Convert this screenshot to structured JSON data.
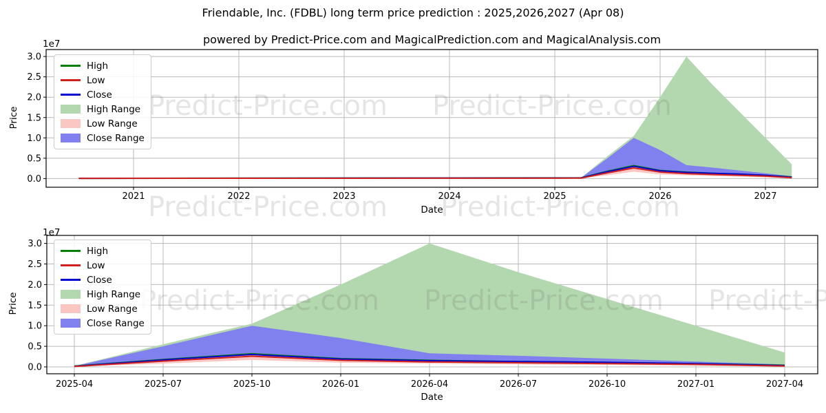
{
  "figure": {
    "title": "Friendable, Inc. (FDBL) long term price prediction : 2025,2026,2027 (Apr 08)",
    "subtitle": "powered by Predict-Price.com and MagicalPrediction.com and MagicalAnalysis.com",
    "watermark": "Predict-Price.com"
  },
  "colors": {
    "high_line": "#067f06",
    "low_line": "#cf1f1f",
    "close_line": "#0404cf",
    "high_range": "#b3d7af",
    "low_range": "#f9c6c2",
    "close_range": "#8080ef",
    "grid": "#b9b9b9",
    "frame": "#000000",
    "text": "#000000"
  },
  "legend": {
    "items": [
      {
        "label": "High",
        "swatch": "line",
        "color": "#067f06"
      },
      {
        "label": "Low",
        "swatch": "line",
        "color": "#cf1f1f"
      },
      {
        "label": "Close",
        "swatch": "line",
        "color": "#0404cf"
      },
      {
        "label": "High Range",
        "swatch": "patch",
        "color": "#b3d7af"
      },
      {
        "label": "Low Range",
        "swatch": "patch",
        "color": "#f9c6c2"
      },
      {
        "label": "Close Range",
        "swatch": "patch",
        "color": "#8080ef"
      }
    ]
  },
  "chart_data": [
    {
      "type": "area",
      "title": "long term price prediction 2020-2027 overview",
      "xlabel": "Date",
      "ylabel": "Price",
      "y_offset_label": "1e7",
      "ylim": [
        0,
        30000000
      ],
      "grid": true,
      "legend_position": "upper left",
      "x_ticks": [
        {
          "label": "2021",
          "year": 2021
        },
        {
          "label": "2022",
          "year": 2022
        },
        {
          "label": "2023",
          "year": 2023
        },
        {
          "label": "2024",
          "year": 2024
        },
        {
          "label": "2025",
          "year": 2025
        },
        {
          "label": "2026",
          "year": 2026
        },
        {
          "label": "2027",
          "year": 2027
        }
      ],
      "y_ticks": [
        {
          "label": "0.0",
          "value": 0
        },
        {
          "label": "0.5",
          "value": 5000000
        },
        {
          "label": "1.0",
          "value": 10000000
        },
        {
          "label": "1.5",
          "value": 15000000
        },
        {
          "label": "2.0",
          "value": 20000000
        },
        {
          "label": "2.5",
          "value": 25000000
        },
        {
          "label": "3.0",
          "value": 30000000
        }
      ],
      "historical": {
        "start_year": 2020.48,
        "end_year": 2025.25,
        "value": 50000
      },
      "series": {
        "dates": [
          "2025-04",
          "2025-07",
          "2025-10",
          "2026-01",
          "2026-04",
          "2026-07",
          "2026-10",
          "2027-01",
          "2027-04"
        ],
        "years": [
          2025.25,
          2025.5,
          2025.75,
          2026.0,
          2026.25,
          2026.5,
          2026.75,
          2027.0,
          2027.25
        ],
        "high_range_top": [
          200000,
          5500000,
          10500000,
          20000000,
          30000000,
          23000000,
          16500000,
          10000000,
          3500000
        ],
        "close_range_top": [
          200000,
          5000000,
          10000000,
          7000000,
          3300000,
          2700000,
          2000000,
          1300000,
          600000
        ],
        "low_range_top": [
          200000,
          1800000,
          3300000,
          2000000,
          1600000,
          1300000,
          1100000,
          800000,
          400000
        ],
        "low_range_bottom": [
          100000,
          800000,
          1700000,
          1000000,
          800000,
          600000,
          500000,
          300000,
          100000
        ],
        "high": [
          200000,
          1800000,
          3200000,
          2000000,
          1600000,
          1300000,
          1100000,
          800000,
          400000
        ],
        "close": [
          150000,
          1700000,
          3000000,
          1900000,
          1500000,
          1300000,
          1100000,
          800000,
          300000
        ],
        "low": [
          100000,
          1400000,
          2600000,
          1600000,
          1200000,
          1000000,
          800000,
          600000,
          200000
        ]
      }
    },
    {
      "type": "area",
      "title": "prediction detail 2025-04 to 2027-04",
      "xlabel": "Date",
      "ylabel": "Price",
      "y_offset_label": "1e7",
      "ylim": [
        0,
        30000000
      ],
      "grid": true,
      "legend_position": "upper left",
      "x_ticks": [
        {
          "label": "2025-04",
          "year": 2025.25
        },
        {
          "label": "2025-07",
          "year": 2025.5
        },
        {
          "label": "2025-10",
          "year": 2025.75
        },
        {
          "label": "2026-01",
          "year": 2026.0
        },
        {
          "label": "2026-04",
          "year": 2026.25
        },
        {
          "label": "2026-07",
          "year": 2026.5
        },
        {
          "label": "2026-10",
          "year": 2026.75
        },
        {
          "label": "2027-01",
          "year": 2027.0
        },
        {
          "label": "2027-04",
          "year": 2027.25
        }
      ],
      "y_ticks": [
        {
          "label": "0.0",
          "value": 0
        },
        {
          "label": "0.5",
          "value": 5000000
        },
        {
          "label": "1.0",
          "value": 10000000
        },
        {
          "label": "1.5",
          "value": 15000000
        },
        {
          "label": "2.0",
          "value": 20000000
        },
        {
          "label": "2.5",
          "value": 25000000
        },
        {
          "label": "3.0",
          "value": 30000000
        }
      ],
      "series": {
        "dates": [
          "2025-04",
          "2025-07",
          "2025-10",
          "2026-01",
          "2026-04",
          "2026-07",
          "2026-10",
          "2027-01",
          "2027-04"
        ],
        "years": [
          2025.25,
          2025.5,
          2025.75,
          2026.0,
          2026.25,
          2026.5,
          2026.75,
          2027.0,
          2027.25
        ],
        "high_range_top": [
          200000,
          5500000,
          10500000,
          20000000,
          30000000,
          23000000,
          16500000,
          10000000,
          3500000
        ],
        "close_range_top": [
          200000,
          5000000,
          10000000,
          7000000,
          3300000,
          2700000,
          2000000,
          1300000,
          600000
        ],
        "low_range_top": [
          200000,
          1800000,
          3300000,
          2000000,
          1600000,
          1300000,
          1100000,
          800000,
          400000
        ],
        "low_range_bottom": [
          100000,
          800000,
          1700000,
          1000000,
          800000,
          600000,
          500000,
          300000,
          100000
        ],
        "high": [
          200000,
          1800000,
          3200000,
          2000000,
          1600000,
          1300000,
          1100000,
          800000,
          400000
        ],
        "close": [
          150000,
          1700000,
          3000000,
          1900000,
          1500000,
          1300000,
          1100000,
          800000,
          300000
        ],
        "low": [
          100000,
          1400000,
          2600000,
          1600000,
          1200000,
          1000000,
          800000,
          600000,
          200000
        ]
      }
    }
  ]
}
